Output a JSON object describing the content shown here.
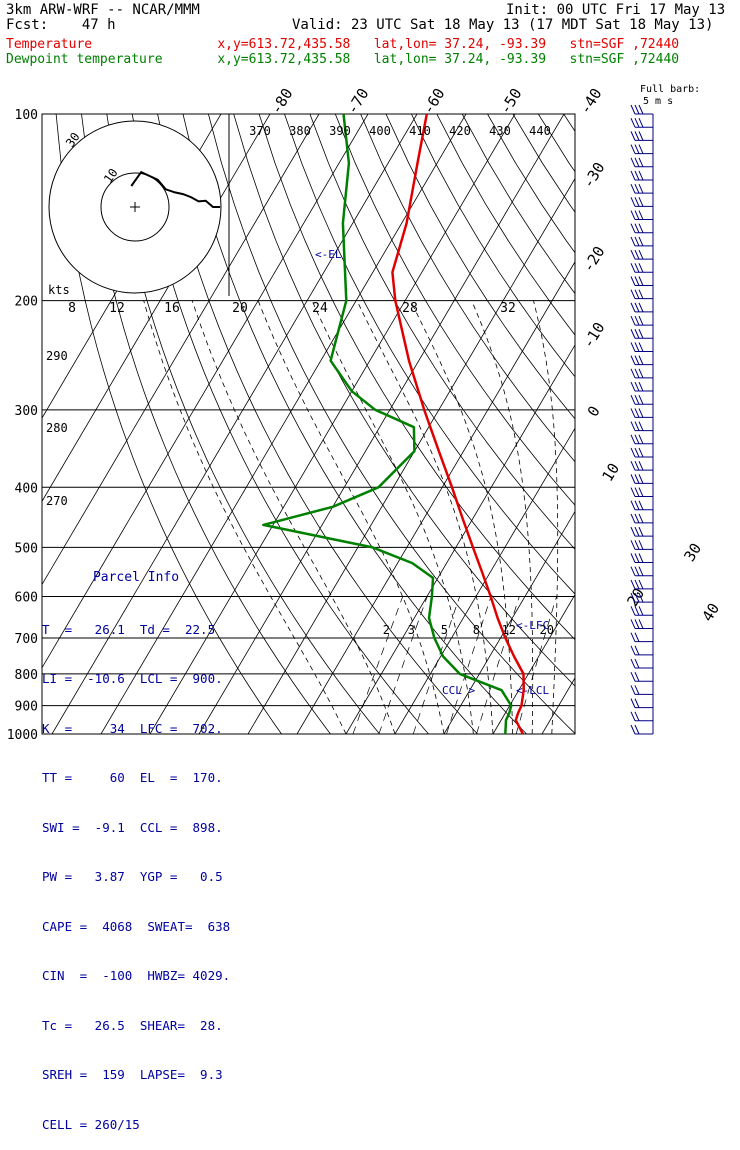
{
  "header": {
    "model_line": "3km ARW-WRF -- NCAR/MMM",
    "init_line": "Init: 00 UTC Fri 17 May 13",
    "fcst_line": "Fcst:    47 h",
    "valid_line": "Valid: 23 UTC Sat 18 May 13 (17 MDT Sat 18 May 13)",
    "temp_line": "Temperature                x,y=613.72,435.58   lat,lon= 37.24, -93.39   stn=SGF ,72440",
    "dew_line": "Dewpoint temperature       x,y=613.72,435.58   lat,lon= 37.24, -93.39   stn=SGF ,72440"
  },
  "colors": {
    "temperature": "#e00000",
    "dewpoint": "#008000",
    "parcel_text": "#0000a0",
    "barb": "#000080"
  },
  "chart_data": {
    "type": "line",
    "diagram": "skew-T log-p",
    "pressure_levels": [
      100,
      200,
      300,
      400,
      500,
      600,
      700,
      800,
      900,
      1000
    ],
    "isotherm_labels_top": [
      "-80",
      "-70",
      "-60",
      "-50",
      "-40"
    ],
    "isotherm_labels_right": [
      "-30",
      "-20",
      "-10",
      "0",
      "10",
      "20",
      "30",
      "40"
    ],
    "theta_labels_top": [
      "370",
      "380",
      "390",
      "400",
      "410",
      "420",
      "430",
      "440"
    ],
    "theta_labels_left": [
      "290",
      "280",
      "270"
    ],
    "mixing_ratio_labels": [
      "2",
      "3",
      "5",
      "8",
      "12",
      "20"
    ],
    "hodograph": {
      "units_label": "kts",
      "speed_labels": [
        "8",
        "12",
        "16",
        "20",
        "24",
        "28",
        "32"
      ],
      "ring_labels": [
        "30",
        "10"
      ]
    },
    "barb_title": "Full barb:",
    "barb_unit": "5 m s",
    "series": [
      {
        "name": "Temperature",
        "points": [
          [
            1000,
            26.1
          ],
          [
            950,
            23.0
          ],
          [
            925,
            22.6
          ],
          [
            900,
            22.4
          ],
          [
            850,
            21.0
          ],
          [
            800,
            19.0
          ],
          [
            750,
            15.0
          ],
          [
            700,
            11.0
          ],
          [
            650,
            7.0
          ],
          [
            600,
            3.0
          ],
          [
            550,
            -1.5
          ],
          [
            500,
            -6.5
          ],
          [
            450,
            -12.0
          ],
          [
            400,
            -18.0
          ],
          [
            350,
            -25.0
          ],
          [
            300,
            -33.0
          ],
          [
            250,
            -42.0
          ],
          [
            200,
            -52.0
          ],
          [
            180,
            -56.0
          ],
          [
            150,
            -59.0
          ],
          [
            120,
            -64.0
          ],
          [
            100,
            -68.0
          ]
        ]
      },
      {
        "name": "Dewpoint temperature",
        "points": [
          [
            1000,
            22.5
          ],
          [
            950,
            21.0
          ],
          [
            925,
            20.8
          ],
          [
            900,
            20.3
          ],
          [
            850,
            16.5
          ],
          [
            800,
            6.0
          ],
          [
            750,
            0.5
          ],
          [
            700,
            -3.5
          ],
          [
            650,
            -7.0
          ],
          [
            600,
            -9.0
          ],
          [
            560,
            -11.0
          ],
          [
            530,
            -17.0
          ],
          [
            500,
            -27.0
          ],
          [
            460,
            -52.0
          ],
          [
            430,
            -40.0
          ],
          [
            400,
            -33.0
          ],
          [
            350,
            -30.0
          ],
          [
            320,
            -33.0
          ],
          [
            300,
            -43.0
          ],
          [
            280,
            -50.0
          ],
          [
            250,
            -58.0
          ],
          [
            200,
            -62.0
          ],
          [
            150,
            -72.0
          ],
          [
            120,
            -78.0
          ],
          [
            100,
            -85.0
          ]
        ]
      }
    ],
    "annotations": [
      "<-EL",
      "<-LFC",
      "<-LCL",
      "CCL >"
    ],
    "wind_barbs": [
      {
        "p": 100,
        "dir": 270,
        "spd_kt": 55
      },
      {
        "p": 150,
        "dir": 270,
        "spd_kt": 60
      },
      {
        "p": 200,
        "dir": 270,
        "spd_kt": 55
      },
      {
        "p": 250,
        "dir": 265,
        "spd_kt": 50
      },
      {
        "p": 300,
        "dir": 265,
        "spd_kt": 45
      },
      {
        "p": 400,
        "dir": 260,
        "spd_kt": 40
      },
      {
        "p": 500,
        "dir": 255,
        "spd_kt": 35
      },
      {
        "p": 600,
        "dir": 250,
        "spd_kt": 30
      },
      {
        "p": 700,
        "dir": 240,
        "spd_kt": 25
      },
      {
        "p": 800,
        "dir": 220,
        "spd_kt": 25
      },
      {
        "p": 900,
        "dir": 190,
        "spd_kt": 25
      },
      {
        "p": 1000,
        "dir": 170,
        "spd_kt": 15
      }
    ]
  },
  "parcel": {
    "title": "Parcel Info",
    "rows": [
      "T  =   26.1  Td =  22.5",
      "LI =  -10.6  LCL =  900.",
      "K  =     34  LFC =  702.",
      "TT =     60  EL  =  170.",
      "SWI =  -9.1  CCL =  898.",
      "PW =   3.87  YGP =   0.5",
      "CAPE =  4068  SWEAT=  638",
      "CIN  =  -100  HWBZ= 4029.",
      "Tc =   26.5  SHEAR=  28.",
      "SREH =  159  LAPSE=  9.3",
      "CELL = 260/15"
    ]
  }
}
